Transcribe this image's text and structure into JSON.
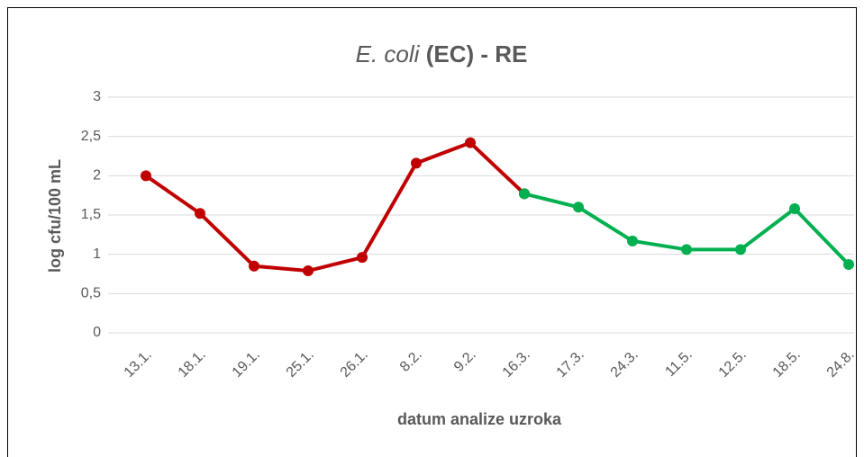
{
  "chart_data": {
    "type": "line",
    "title_italic": "E. coli",
    "title": "(EC) - RE",
    "xlabel": "datum analize uzroka",
    "ylabel": "log cfu/100 mL",
    "categories": [
      "13.1.",
      "18.1.",
      "19.1.",
      "25.1.",
      "26.1.",
      "8.2.",
      "9.2.",
      "16.3.",
      "17.3.",
      "24.3.",
      "11.5.",
      "12.5.",
      "18.5.",
      "24.8."
    ],
    "series": [
      {
        "color": "#c00000",
        "values": [
          2.0,
          1.52,
          0.85,
          0.79,
          0.96,
          2.16,
          2.42,
          1.77,
          null,
          null,
          null,
          null,
          null,
          null
        ]
      },
      {
        "color": "#00b050",
        "values": [
          null,
          null,
          null,
          null,
          null,
          null,
          null,
          1.77,
          1.6,
          1.17,
          1.06,
          1.06,
          1.58,
          0.87
        ]
      }
    ],
    "ylim": [
      0,
      3
    ],
    "yticks": [
      0,
      {
        "value": 0.5,
        "label": "0,5"
      },
      1,
      {
        "value": 1.5,
        "label": "1,5"
      },
      2,
      {
        "value": 2.5,
        "label": "2,5"
      },
      3
    ],
    "grid": true
  }
}
